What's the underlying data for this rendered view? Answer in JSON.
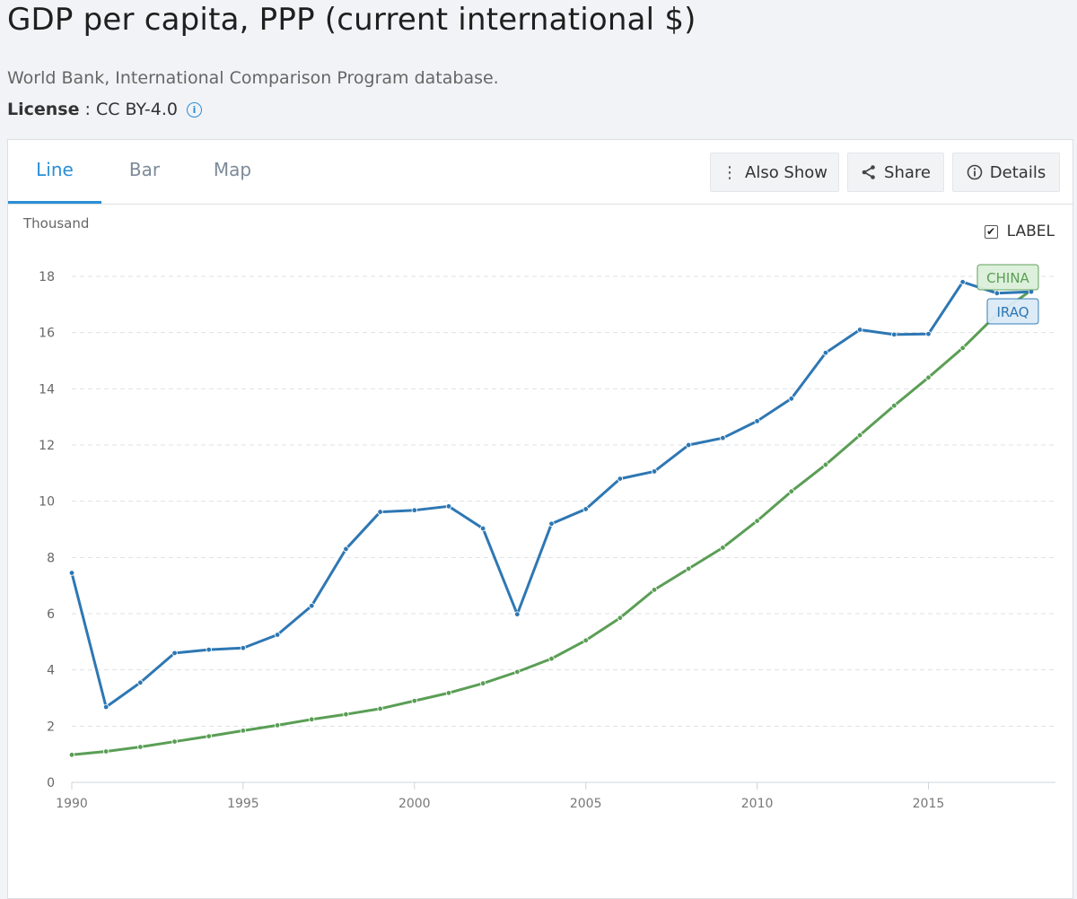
{
  "page": {
    "title": "GDP per capita, PPP (current international $)",
    "source": "World Bank, International Comparison Program database.",
    "license_label": "License",
    "license_value": " : CC BY-4.0"
  },
  "tabs": [
    {
      "label": "Line"
    },
    {
      "label": "Bar"
    },
    {
      "label": "Map"
    }
  ],
  "toolbar": {
    "also_show": "Also Show",
    "share": "Share",
    "details": "Details"
  },
  "label_toggle": "LABEL",
  "chart_data": {
    "type": "line",
    "ylabel": "Thousand",
    "ylim": [
      0,
      18
    ],
    "yticks": [
      0,
      2,
      4,
      6,
      8,
      10,
      12,
      14,
      16,
      18
    ],
    "xlim": [
      1990,
      2018
    ],
    "xticks": [
      1990,
      1995,
      2000,
      2005,
      2010,
      2015
    ],
    "x": [
      1990,
      1991,
      1992,
      1993,
      1994,
      1995,
      1996,
      1997,
      1998,
      1999,
      2000,
      2001,
      2002,
      2003,
      2004,
      2005,
      2006,
      2007,
      2008,
      2009,
      2010,
      2011,
      2012,
      2013,
      2014,
      2015,
      2016,
      2017,
      2018
    ],
    "series": [
      {
        "name": "IRAQ",
        "color": "#2e77b3",
        "label_bg": "#dbeaf6",
        "values": [
          7.45,
          2.68,
          3.55,
          4.6,
          4.72,
          4.78,
          5.25,
          6.28,
          8.3,
          9.62,
          9.68,
          9.82,
          9.03,
          5.98,
          9.2,
          9.72,
          10.8,
          11.06,
          12.0,
          12.25,
          12.85,
          13.65,
          15.28,
          16.1,
          15.93,
          15.95,
          17.8,
          17.4,
          17.45
        ]
      },
      {
        "name": "CHINA",
        "color": "#5a9e55",
        "label_bg": "#dcf0da",
        "values": [
          0.98,
          1.1,
          1.26,
          1.45,
          1.64,
          1.84,
          2.03,
          2.24,
          2.42,
          2.62,
          2.9,
          3.18,
          3.52,
          3.93,
          4.4,
          5.05,
          5.85,
          6.85,
          7.6,
          8.35,
          9.3,
          10.35,
          11.3,
          12.35,
          13.4,
          14.4,
          15.45,
          16.65,
          17.5
        ]
      }
    ]
  }
}
